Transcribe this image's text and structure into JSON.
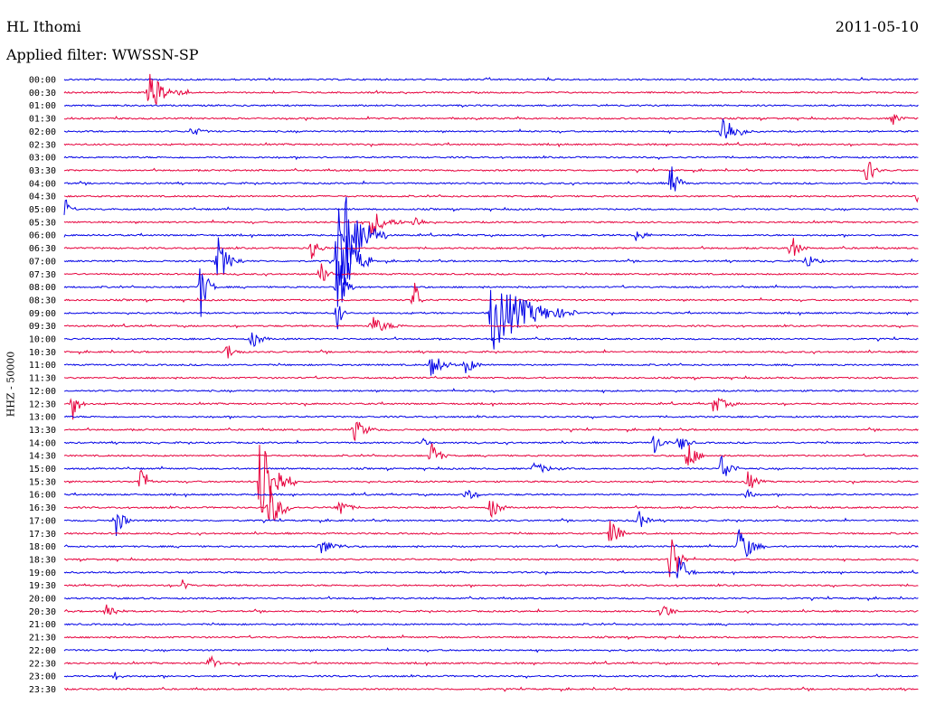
{
  "header": {
    "station": "HL Ithomi",
    "date": "2011-05-10",
    "filter_label": "Applied filter: WWSSN-SP"
  },
  "chart_data": {
    "type": "line",
    "title": "HL Ithomi",
    "ylabel": "HHZ - 50000",
    "trace_times": [
      "00:00",
      "00:30",
      "01:00",
      "01:30",
      "02:00",
      "02:30",
      "03:00",
      "03:30",
      "04:00",
      "04:30",
      "05:00",
      "05:30",
      "06:00",
      "06:30",
      "07:00",
      "07:30",
      "08:00",
      "08:30",
      "09:00",
      "09:30",
      "10:00",
      "10:30",
      "11:00",
      "11:30",
      "12:00",
      "12:30",
      "13:00",
      "13:30",
      "14:00",
      "14:30",
      "15:00",
      "15:30",
      "16:00",
      "16:30",
      "17:00",
      "17:30",
      "18:00",
      "18:30",
      "19:00",
      "19:30",
      "20:00",
      "20:30",
      "21:00",
      "21:30",
      "22:00",
      "22:30",
      "23:00",
      "23:30"
    ],
    "colors": {
      "even": "#0000e6",
      "odd": "#e6003c"
    },
    "events": [
      {
        "row": 1,
        "pos": 0.1,
        "amp": 1.0,
        "dur": 0.045
      },
      {
        "row": 3,
        "pos": 0.97,
        "amp": 0.3,
        "dur": 0.02
      },
      {
        "row": 4,
        "pos": 0.77,
        "amp": 1.0,
        "dur": 0.035
      },
      {
        "row": 4,
        "pos": 0.15,
        "amp": 0.3,
        "dur": 0.02
      },
      {
        "row": 7,
        "pos": 0.94,
        "amp": 1.0,
        "dur": 0.015
      },
      {
        "row": 8,
        "pos": 0.71,
        "amp": 1.0,
        "dur": 0.02
      },
      {
        "row": 9,
        "pos": 1.0,
        "amp": 1.0,
        "dur": 0.01
      },
      {
        "row": 10,
        "pos": 0.0,
        "amp": 1.0,
        "dur": 0.01
      },
      {
        "row": 11,
        "pos": 0.36,
        "amp": 0.7,
        "dur": 0.04
      },
      {
        "row": 11,
        "pos": 0.41,
        "amp": 0.4,
        "dur": 0.02
      },
      {
        "row": 12,
        "pos": 0.33,
        "amp": 2.5,
        "dur": 0.05
      },
      {
        "row": 12,
        "pos": 0.67,
        "amp": 0.4,
        "dur": 0.02
      },
      {
        "row": 13,
        "pos": 0.85,
        "amp": 0.8,
        "dur": 0.02
      },
      {
        "row": 13,
        "pos": 0.29,
        "amp": 0.6,
        "dur": 0.02
      },
      {
        "row": 14,
        "pos": 0.18,
        "amp": 1.2,
        "dur": 0.03
      },
      {
        "row": 14,
        "pos": 0.32,
        "amp": 3.0,
        "dur": 0.04
      },
      {
        "row": 14,
        "pos": 0.87,
        "amp": 0.4,
        "dur": 0.02
      },
      {
        "row": 15,
        "pos": 0.3,
        "amp": 0.6,
        "dur": 0.02
      },
      {
        "row": 16,
        "pos": 0.16,
        "amp": 1.5,
        "dur": 0.02
      },
      {
        "row": 16,
        "pos": 0.32,
        "amp": 2.0,
        "dur": 0.02
      },
      {
        "row": 17,
        "pos": 0.41,
        "amp": 1.5,
        "dur": 0.01
      },
      {
        "row": 18,
        "pos": 0.5,
        "amp": 2.0,
        "dur": 0.1
      },
      {
        "row": 18,
        "pos": 0.32,
        "amp": 1.0,
        "dur": 0.01
      },
      {
        "row": 19,
        "pos": 0.36,
        "amp": 0.5,
        "dur": 0.04
      },
      {
        "row": 20,
        "pos": 0.22,
        "amp": 0.6,
        "dur": 0.02
      },
      {
        "row": 21,
        "pos": 0.19,
        "amp": 0.5,
        "dur": 0.02
      },
      {
        "row": 22,
        "pos": 0.43,
        "amp": 0.7,
        "dur": 0.03
      },
      {
        "row": 22,
        "pos": 0.47,
        "amp": 0.6,
        "dur": 0.02
      },
      {
        "row": 25,
        "pos": 0.01,
        "amp": 1.0,
        "dur": 0.015
      },
      {
        "row": 25,
        "pos": 0.76,
        "amp": 0.5,
        "dur": 0.03
      },
      {
        "row": 27,
        "pos": 0.34,
        "amp": 0.6,
        "dur": 0.03
      },
      {
        "row": 28,
        "pos": 0.69,
        "amp": 0.6,
        "dur": 0.02
      },
      {
        "row": 28,
        "pos": 0.72,
        "amp": 0.5,
        "dur": 0.02
      },
      {
        "row": 28,
        "pos": 0.42,
        "amp": 0.4,
        "dur": 0.01
      },
      {
        "row": 29,
        "pos": 0.43,
        "amp": 0.8,
        "dur": 0.02
      },
      {
        "row": 29,
        "pos": 0.73,
        "amp": 1.0,
        "dur": 0.02
      },
      {
        "row": 30,
        "pos": 0.77,
        "amp": 1.0,
        "dur": 0.02
      },
      {
        "row": 30,
        "pos": 0.55,
        "amp": 0.3,
        "dur": 0.04
      },
      {
        "row": 31,
        "pos": 0.23,
        "amp": 3.0,
        "dur": 0.04
      },
      {
        "row": 31,
        "pos": 0.09,
        "amp": 1.0,
        "dur": 0.015
      },
      {
        "row": 31,
        "pos": 0.8,
        "amp": 0.6,
        "dur": 0.02
      },
      {
        "row": 32,
        "pos": 0.8,
        "amp": 0.6,
        "dur": 0.01
      },
      {
        "row": 32,
        "pos": 0.47,
        "amp": 0.4,
        "dur": 0.02
      },
      {
        "row": 33,
        "pos": 0.24,
        "amp": 1.3,
        "dur": 0.03
      },
      {
        "row": 33,
        "pos": 0.32,
        "amp": 0.8,
        "dur": 0.02
      },
      {
        "row": 33,
        "pos": 0.5,
        "amp": 0.7,
        "dur": 0.02
      },
      {
        "row": 34,
        "pos": 0.06,
        "amp": 1.0,
        "dur": 0.02
      },
      {
        "row": 34,
        "pos": 0.67,
        "amp": 0.7,
        "dur": 0.02
      },
      {
        "row": 35,
        "pos": 0.64,
        "amp": 1.0,
        "dur": 0.02
      },
      {
        "row": 36,
        "pos": 0.79,
        "amp": 1.2,
        "dur": 0.03
      },
      {
        "row": 36,
        "pos": 0.3,
        "amp": 0.4,
        "dur": 0.04
      },
      {
        "row": 37,
        "pos": 0.71,
        "amp": 2.0,
        "dur": 0.02
      },
      {
        "row": 38,
        "pos": 0.72,
        "amp": 1.0,
        "dur": 0.02
      },
      {
        "row": 39,
        "pos": 0.14,
        "amp": 0.5,
        "dur": 0.01
      },
      {
        "row": 41,
        "pos": 0.05,
        "amp": 0.6,
        "dur": 0.02
      },
      {
        "row": 41,
        "pos": 0.7,
        "amp": 0.6,
        "dur": 0.02
      },
      {
        "row": 45,
        "pos": 0.17,
        "amp": 0.5,
        "dur": 0.015
      },
      {
        "row": 46,
        "pos": 0.06,
        "amp": 0.5,
        "dur": 0.01
      }
    ]
  }
}
